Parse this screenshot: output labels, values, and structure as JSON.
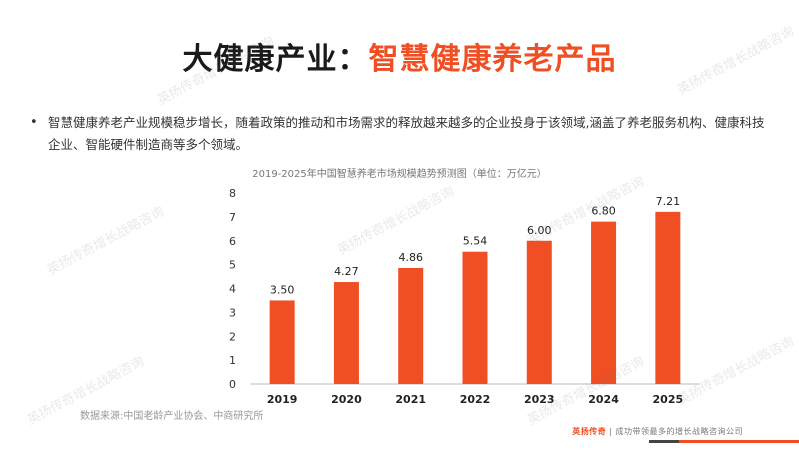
{
  "slide": {
    "title_prefix": "大健康产业：",
    "title_highlight": "智慧健康养老产品",
    "bullet_symbol": "•",
    "bullet_text": "智慧健康养老产业规模稳步增长，随着政策的推动和市场需求的释放越来越多的企业投身于该领域,涵盖了养老服务机构、健康科技企业、智能硬件制造商等多个领域。",
    "source": "数据来源:中国老龄产业协会、中商研究所",
    "footer_brand_name": "英扬传奇",
    "footer_brand_slogan": "成功带领最多的增长战略咨询公司",
    "watermark_text": "英扬传奇增长战略咨询"
  },
  "colors": {
    "accent": "#f04e23",
    "bar": "#f04e23"
  },
  "chart_data": {
    "type": "bar",
    "title": "2019-2025年中国智慧养老市场规模趋势预测图（单位：万亿元）",
    "categories": [
      "2019",
      "2020",
      "2021",
      "2022",
      "2023",
      "2024",
      "2025"
    ],
    "values": [
      3.5,
      4.27,
      4.86,
      5.54,
      6.0,
      6.8,
      7.21
    ],
    "value_labels": [
      "3.50",
      "4.27",
      "4.86",
      "5.54",
      "6.00",
      "6.80",
      "7.21"
    ],
    "yticks": [
      "0",
      "1",
      "2",
      "3",
      "4",
      "5",
      "6",
      "7",
      "8"
    ],
    "ylim": [
      0,
      8
    ],
    "xlabel": "",
    "ylabel": "",
    "grid": false,
    "legend": "none"
  }
}
